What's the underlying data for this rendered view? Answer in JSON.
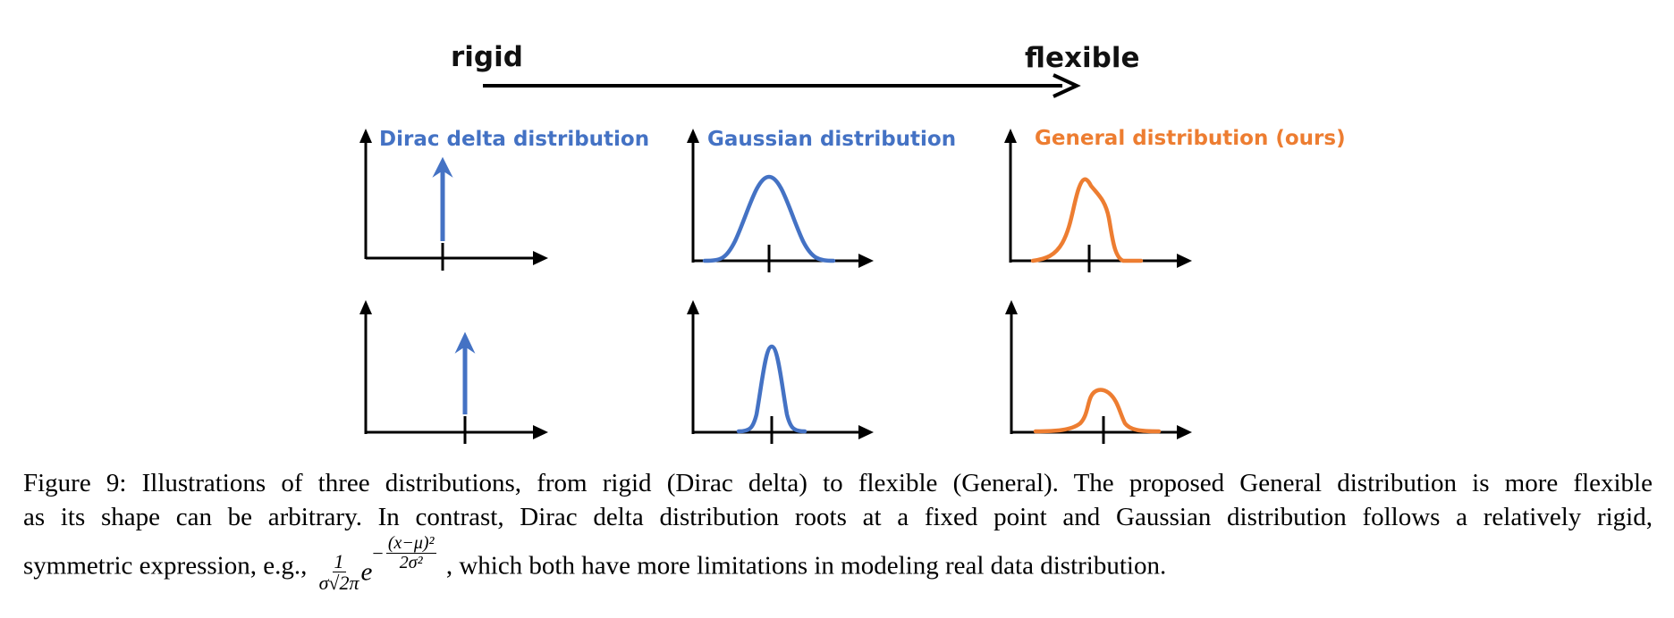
{
  "top_axis": {
    "left_label": "rigid",
    "right_label": "flexible"
  },
  "panels": [
    {
      "id": "dirac",
      "title": "Dirac delta distribution",
      "color": "#4472c4"
    },
    {
      "id": "gaussian",
      "title": "Gaussian distribution",
      "color": "#4472c4"
    },
    {
      "id": "general",
      "title": "General distribution (ours)",
      "color": "#ed7d31"
    }
  ],
  "caption": {
    "line1": "Figure 9: Illustrations of three distributions, from rigid (Dirac delta) to flexible (General). The proposed General distribution is more flexible",
    "line2": "as its shape can be arbitrary. In contrast, Dirac delta distribution roots at a fixed point and Gaussian distribution follows a relatively rigid,",
    "line3_before": "symmetric expression, e.g.,",
    "line3_after": ", which both have more limitations in modeling real data distribution.",
    "formula": {
      "coef_num": "1",
      "coef_den": "σ√2π",
      "base": "e",
      "exp_sign": "−",
      "exp_num": "(x−μ)²",
      "exp_den": "2σ²"
    }
  }
}
